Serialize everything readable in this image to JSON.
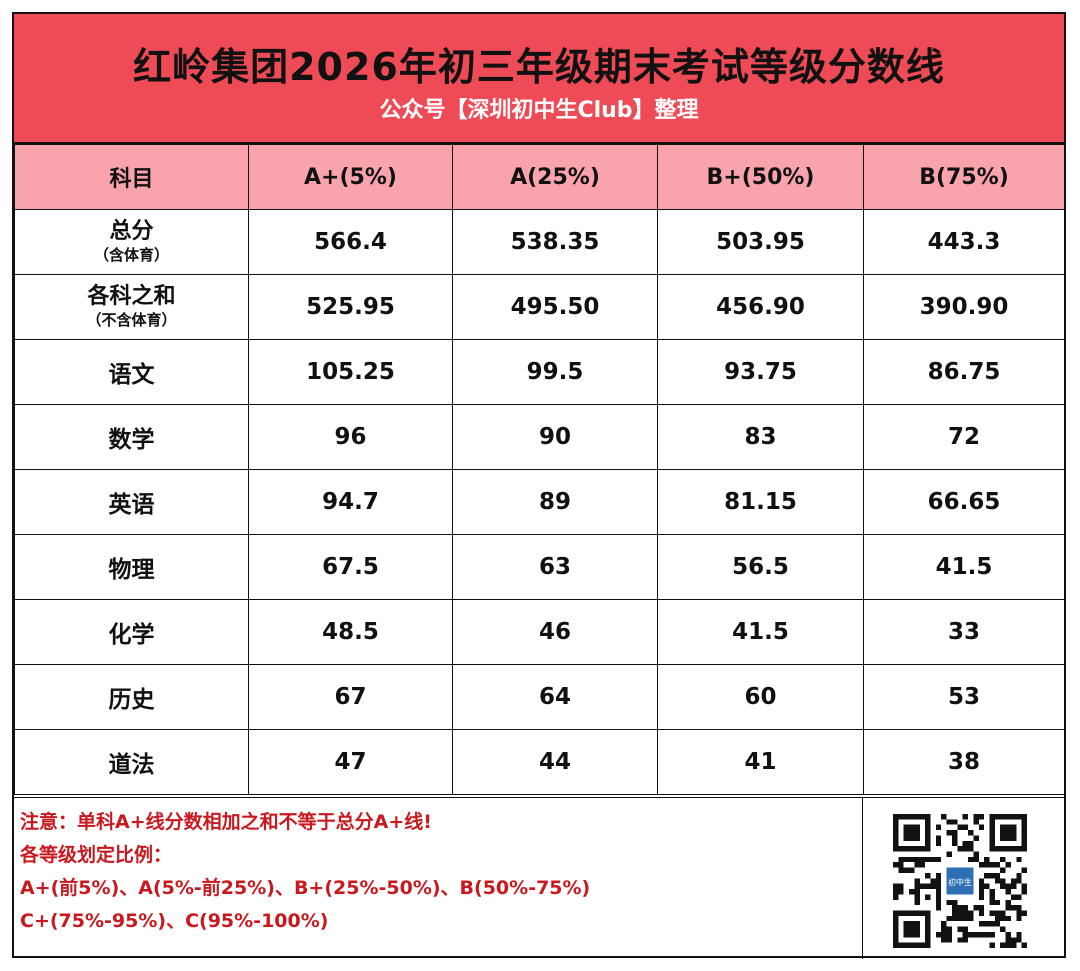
{
  "header": {
    "title": "红岭集团2026年初三年级期末考试等级分数线",
    "subtitle": "公众号【深圳初中生Club】整理",
    "bg_color": "#ef4b56"
  },
  "table": {
    "header_bg": "#f9a3ad",
    "columns": [
      "科目",
      "A+(5%)",
      "A(25%)",
      "B+(50%)",
      "B(75%)"
    ],
    "rows": [
      {
        "subject": "总分",
        "note": "（含体育）",
        "values": [
          "566.4",
          "538.35",
          "503.95",
          "443.3"
        ]
      },
      {
        "subject": "各科之和",
        "note": "（不含体育）",
        "values": [
          "525.95",
          "495.50",
          "456.90",
          "390.90"
        ]
      },
      {
        "subject": "语文",
        "note": "",
        "values": [
          "105.25",
          "99.5",
          "93.75",
          "86.75"
        ]
      },
      {
        "subject": "数学",
        "note": "",
        "values": [
          "96",
          "90",
          "83",
          "72"
        ]
      },
      {
        "subject": "英语",
        "note": "",
        "values": [
          "94.7",
          "89",
          "81.15",
          "66.65"
        ]
      },
      {
        "subject": "物理",
        "note": "",
        "values": [
          "67.5",
          "63",
          "56.5",
          "41.5"
        ]
      },
      {
        "subject": "化学",
        "note": "",
        "values": [
          "48.5",
          "46",
          "41.5",
          "33"
        ]
      },
      {
        "subject": "历史",
        "note": "",
        "values": [
          "67",
          "64",
          "60",
          "53"
        ]
      },
      {
        "subject": "道法",
        "note": "",
        "values": [
          "47",
          "44",
          "41",
          "38"
        ]
      }
    ]
  },
  "footer": {
    "notes": [
      "注意：单科A+线分数相加之和不等于总分A+线!",
      "各等级划定比例：",
      "A+(前5%)、A(5%-前25%)、B+(25%-50%)、B(50%-75%)",
      "C+(75%-95%)、C(95%-100%)"
    ],
    "note_color": "#c8191f",
    "qr_icon": "qr-code-icon",
    "qr_logo_text": "初中生"
  }
}
